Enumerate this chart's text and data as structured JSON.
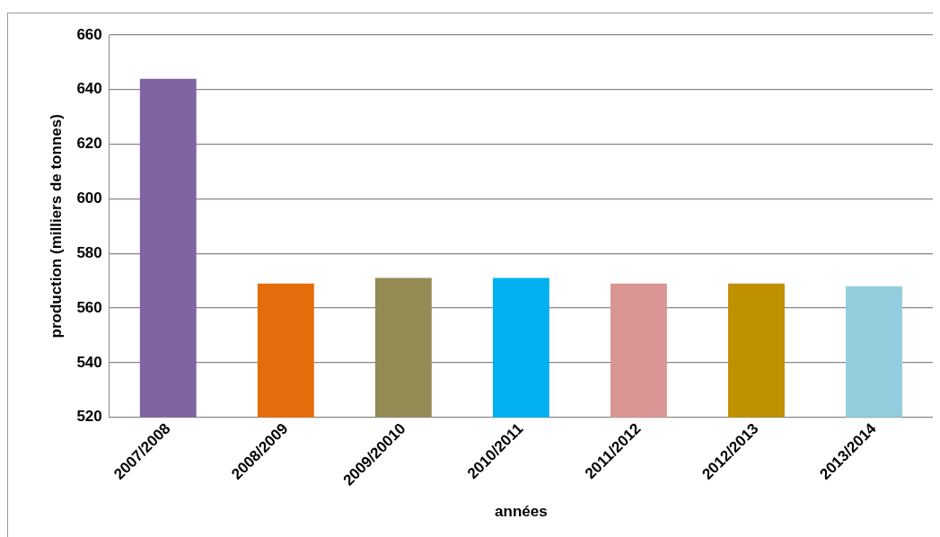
{
  "chart_data": {
    "type": "bar",
    "xlabel": "années",
    "ylabel": "production (milliers de tonnes)",
    "categories": [
      "2007/2008",
      "2008/2009",
      "2009/20010",
      "2010/2011",
      "2011/2012",
      "2012/2013",
      "2013/2014"
    ],
    "values": [
      644,
      569,
      571,
      571,
      569,
      569,
      568
    ],
    "colors": [
      "#8064a2",
      "#e46c0a",
      "#948a54",
      "#00b0f0",
      "#d99694",
      "#bf9000",
      "#93cddd"
    ],
    "ylim": [
      520,
      660
    ],
    "yticks": [
      520,
      540,
      560,
      580,
      600,
      620,
      640,
      660
    ],
    "grid": "y",
    "legend": false
  }
}
